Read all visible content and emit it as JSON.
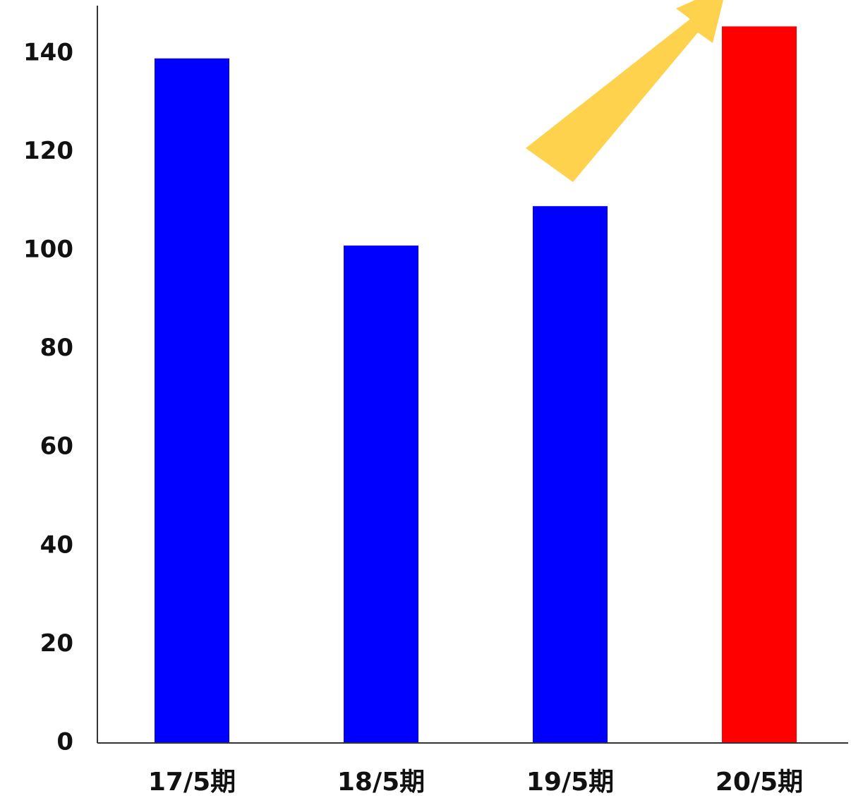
{
  "chart_data": {
    "type": "bar",
    "categories": [
      "17/5期",
      "18/5期",
      "19/5期",
      "20/5期"
    ],
    "values": [
      139,
      101,
      109,
      145.5
    ],
    "bar_colors": [
      "#0000ff",
      "#0000ff",
      "#0000ff",
      "#ff0000"
    ],
    "ylim": [
      0,
      150
    ],
    "yticks": [
      "0",
      "20",
      "40",
      "60",
      "80",
      "100",
      "120",
      "140"
    ],
    "title": "",
    "xlabel": "",
    "ylabel": "",
    "grid": false,
    "annotation": {
      "type": "arrow",
      "direction": "up-right",
      "color": "#ffd24d"
    }
  }
}
